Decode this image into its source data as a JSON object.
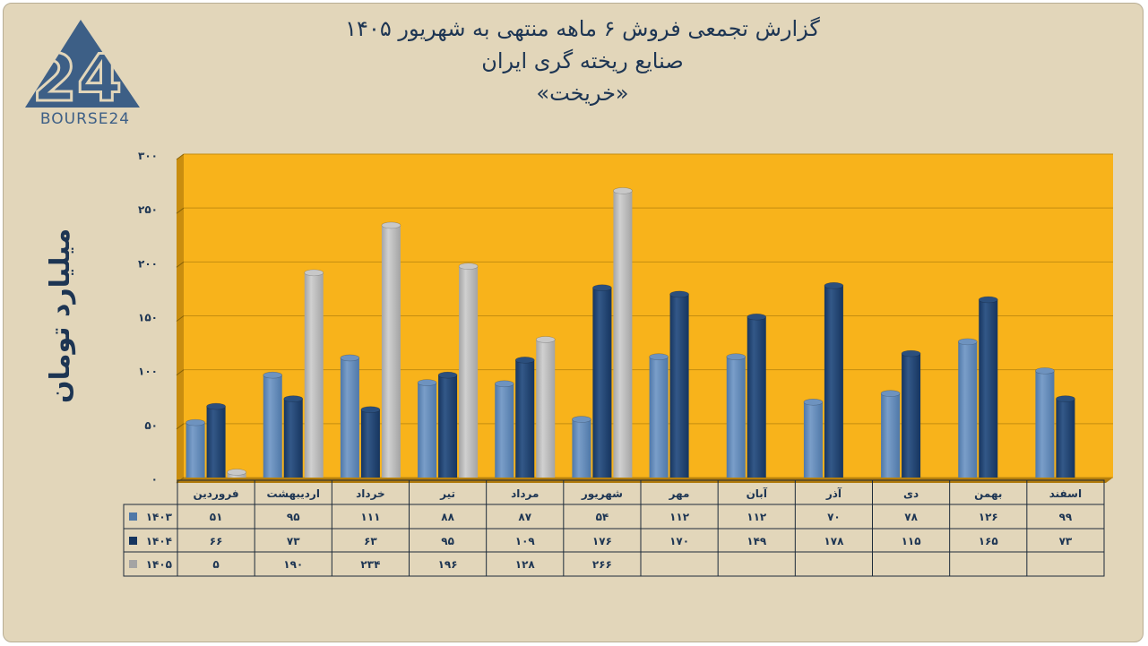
{
  "title": {
    "line1": "گزارش تجمعی فروش ۶ ماهه منتهی به شهریور ۱۴۰۵",
    "line2": "صنایع ریخته گری ایران",
    "line3": "«خریخت»"
  },
  "logo": {
    "text": "BOURSE24",
    "mark": "24"
  },
  "colors": {
    "s1403": "#4f78a8",
    "s1404": "#16355f",
    "s1405": "#a4a4a4",
    "plot_bg": "#f8b31b",
    "frame_bg": "#e2d6ba"
  },
  "chart_data": {
    "type": "bar",
    "title": "گزارش تجمعی فروش ۶ ماهه منتهی به شهریور ۱۴۰۵",
    "ylabel": "میلیارد تومان",
    "xlabel": "",
    "ylim": [
      0,
      300
    ],
    "yticks": [
      "۰",
      "۵۰",
      "۱۰۰",
      "۱۵۰",
      "۲۰۰",
      "۲۵۰",
      "۳۰۰"
    ],
    "ytick_values": [
      0,
      50,
      100,
      150,
      200,
      250,
      300
    ],
    "categories": [
      "فروردین",
      "اردیبهشت",
      "خرداد",
      "تیر",
      "مرداد",
      "شهریور",
      "مهر",
      "آبان",
      "آذر",
      "دی",
      "بهمن",
      "اسفند"
    ],
    "series": [
      {
        "name": "۱۴۰۳",
        "values": [
          51,
          95,
          111,
          88,
          87,
          54,
          112,
          112,
          70,
          78,
          126,
          99
        ],
        "labels": [
          "۵۱",
          "۹۵",
          "۱۱۱",
          "۸۸",
          "۸۷",
          "۵۴",
          "۱۱۲",
          "۱۱۲",
          "۷۰",
          "۷۸",
          "۱۲۶",
          "۹۹"
        ]
      },
      {
        "name": "۱۴۰۴",
        "values": [
          66,
          73,
          63,
          95,
          109,
          176,
          170,
          149,
          178,
          115,
          165,
          73
        ],
        "labels": [
          "۶۶",
          "۷۳",
          "۶۳",
          "۹۵",
          "۱۰۹",
          "۱۷۶",
          "۱۷۰",
          "۱۴۹",
          "۱۷۸",
          "۱۱۵",
          "۱۶۵",
          "۷۳"
        ]
      },
      {
        "name": "۱۴۰۵",
        "values": [
          5,
          190,
          234,
          196,
          128,
          266,
          null,
          null,
          null,
          null,
          null,
          null
        ],
        "labels": [
          "۵",
          "۱۹۰",
          "۲۳۴",
          "۱۹۶",
          "۱۲۸",
          "۲۶۶",
          "",
          "",
          "",
          "",
          "",
          ""
        ]
      }
    ],
    "grid": true,
    "legend": "table-below"
  }
}
